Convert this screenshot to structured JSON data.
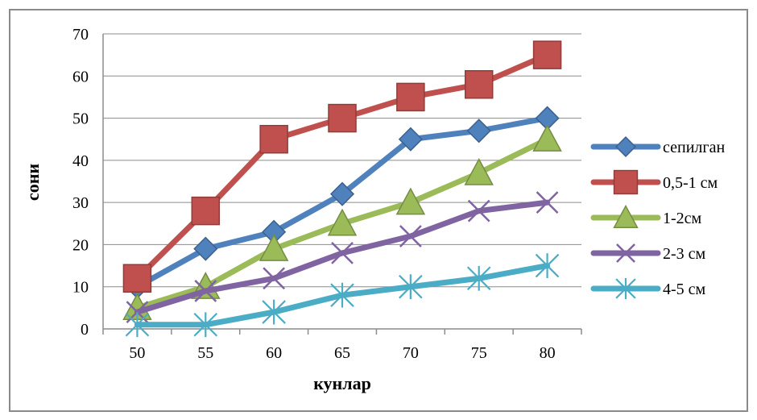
{
  "chart_data": {
    "type": "line",
    "title": "",
    "xlabel": "кунлар",
    "ylabel": "сони",
    "x": [
      50,
      55,
      60,
      65,
      70,
      75,
      80
    ],
    "ylim": [
      0,
      70
    ],
    "yticks": [
      0,
      10,
      20,
      30,
      40,
      50,
      60,
      70
    ],
    "grid": "horizontal",
    "legend_position": "right",
    "series": [
      {
        "name": "сепилган",
        "values": [
          10,
          19,
          23,
          32,
          45,
          47,
          50
        ],
        "color": "#4F81BD",
        "marker": "diamond"
      },
      {
        "name": "0,5-1 см",
        "values": [
          12,
          28,
          45,
          50,
          55,
          58,
          65
        ],
        "color": "#C0504D",
        "marker": "square"
      },
      {
        "name": "1-2см",
        "values": [
          5,
          10,
          19,
          25,
          30,
          37,
          45
        ],
        "color": "#9BBB59",
        "marker": "triangle"
      },
      {
        "name": "2-3 см",
        "values": [
          4,
          9,
          12,
          18,
          22,
          28,
          30
        ],
        "color": "#8064A2",
        "marker": "x"
      },
      {
        "name": "4-5 см",
        "values": [
          1,
          1,
          4,
          8,
          10,
          12,
          15
        ],
        "color": "#4BACC6",
        "marker": "star"
      }
    ]
  }
}
